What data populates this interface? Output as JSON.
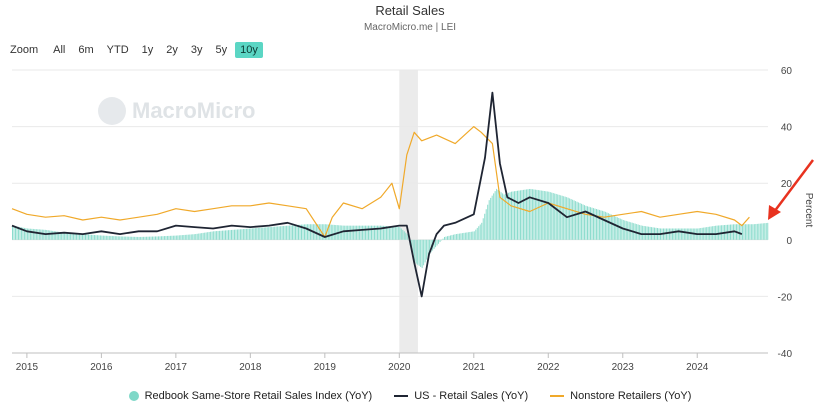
{
  "title": "Retail Sales",
  "subtitle": "MacroMicro.me | LEI",
  "watermark": "MacroMicro",
  "range_selector": {
    "label": "Zoom",
    "options": [
      "All",
      "6m",
      "YTD",
      "1y",
      "2y",
      "3y",
      "5y",
      "10y"
    ],
    "active": "10y"
  },
  "colors": {
    "redbook": "#7fd8c8",
    "retail": "#1f2533",
    "nonstore": "#f0a92a",
    "recession": "#ebebeb",
    "arrow": "#e8321f"
  },
  "legend": {
    "redbook": "Redbook Same-Store Retail Sales Index (YoY)",
    "retail": "US - Retail Sales (YoY)",
    "nonstore": "Nonstore Retailers (YoY)"
  },
  "chart_data": {
    "type": "line",
    "title": "Retail Sales",
    "xlabel": "",
    "ylabel": "Percent",
    "xlim": [
      2014.8,
      2024.95
    ],
    "ylim": [
      -40,
      60
    ],
    "yticks": [
      60,
      40,
      20,
      0,
      -20,
      -40
    ],
    "xticks": [
      "2015",
      "2016",
      "2017",
      "2018",
      "2019",
      "2020",
      "2021",
      "2022",
      "2023",
      "2024"
    ],
    "recession_band": [
      2020.0,
      2020.25
    ],
    "series": [
      {
        "name": "Redbook Same-Store Retail Sales Index (YoY)",
        "type": "bar",
        "x": [
          2014.8,
          2015.0,
          2015.25,
          2015.5,
          2015.75,
          2016.0,
          2016.25,
          2016.5,
          2016.75,
          2017.0,
          2017.25,
          2017.5,
          2017.75,
          2018.0,
          2018.25,
          2018.5,
          2018.75,
          2019.0,
          2019.25,
          2019.5,
          2019.75,
          2020.0,
          2020.1,
          2020.2,
          2020.3,
          2020.4,
          2020.5,
          2020.6,
          2020.75,
          2021.0,
          2021.1,
          2021.2,
          2021.3,
          2021.4,
          2021.5,
          2021.75,
          2022.0,
          2022.25,
          2022.5,
          2022.75,
          2023.0,
          2023.25,
          2023.5,
          2023.75,
          2024.0,
          2024.25,
          2024.5,
          2024.75,
          2024.95
        ],
        "y": [
          5,
          4,
          3.5,
          2.5,
          2,
          1.5,
          1.2,
          1,
          1.2,
          1.5,
          2,
          3,
          3.5,
          4,
          4.5,
          5,
          5.5,
          5.5,
          5,
          5,
          5,
          4.5,
          2,
          -8,
          -10,
          -5,
          -2,
          1,
          2,
          3,
          6,
          14,
          18,
          16,
          17,
          18,
          17,
          15,
          12,
          10,
          7,
          5,
          4,
          4,
          4,
          5,
          5.5,
          5.5,
          6
        ]
      },
      {
        "name": "US - Retail Sales (YoY)",
        "type": "line",
        "x": [
          2014.8,
          2015.0,
          2015.25,
          2015.5,
          2015.75,
          2016.0,
          2016.25,
          2016.5,
          2016.75,
          2017.0,
          2017.25,
          2017.5,
          2017.75,
          2018.0,
          2018.25,
          2018.5,
          2018.75,
          2019.0,
          2019.25,
          2019.5,
          2019.75,
          2020.0,
          2020.1,
          2020.2,
          2020.3,
          2020.4,
          2020.5,
          2020.6,
          2020.75,
          2021.0,
          2021.15,
          2021.25,
          2021.35,
          2021.45,
          2021.6,
          2021.75,
          2022.0,
          2022.25,
          2022.5,
          2022.75,
          2023.0,
          2023.25,
          2023.5,
          2023.75,
          2024.0,
          2024.25,
          2024.5,
          2024.6
        ],
        "y": [
          5,
          3,
          2,
          2.5,
          2,
          3,
          2,
          3,
          3,
          5,
          4.5,
          4,
          5,
          4.5,
          5,
          6,
          4,
          1,
          3,
          3.5,
          4,
          5,
          5,
          -8,
          -20,
          -5,
          2,
          5,
          6,
          9,
          29,
          52,
          27,
          15,
          13,
          15,
          13,
          8,
          10,
          7,
          4,
          2,
          2,
          3,
          2,
          2,
          3,
          2
        ]
      },
      {
        "name": "Nonstore Retailers (YoY)",
        "type": "line",
        "x": [
          2014.8,
          2015.0,
          2015.25,
          2015.5,
          2015.75,
          2016.0,
          2016.25,
          2016.5,
          2016.75,
          2017.0,
          2017.25,
          2017.5,
          2017.75,
          2018.0,
          2018.25,
          2018.5,
          2018.75,
          2019.0,
          2019.1,
          2019.25,
          2019.5,
          2019.75,
          2019.9,
          2020.0,
          2020.1,
          2020.2,
          2020.3,
          2020.5,
          2020.75,
          2021.0,
          2021.1,
          2021.25,
          2021.35,
          2021.5,
          2021.75,
          2022.0,
          2022.25,
          2022.5,
          2022.75,
          2023.0,
          2023.25,
          2023.5,
          2023.75,
          2024.0,
          2024.25,
          2024.5,
          2024.6,
          2024.7
        ],
        "y": [
          11,
          9,
          8,
          8.5,
          7,
          8,
          7,
          8,
          9,
          11,
          10,
          11,
          12,
          12,
          13,
          12,
          11,
          1,
          8,
          13,
          11,
          15,
          20,
          11,
          30,
          38,
          35,
          37,
          34,
          40,
          38,
          34,
          15,
          12,
          10,
          13,
          11,
          9,
          8,
          9,
          10,
          8,
          9,
          10,
          9,
          7,
          5,
          8
        ]
      }
    ]
  }
}
